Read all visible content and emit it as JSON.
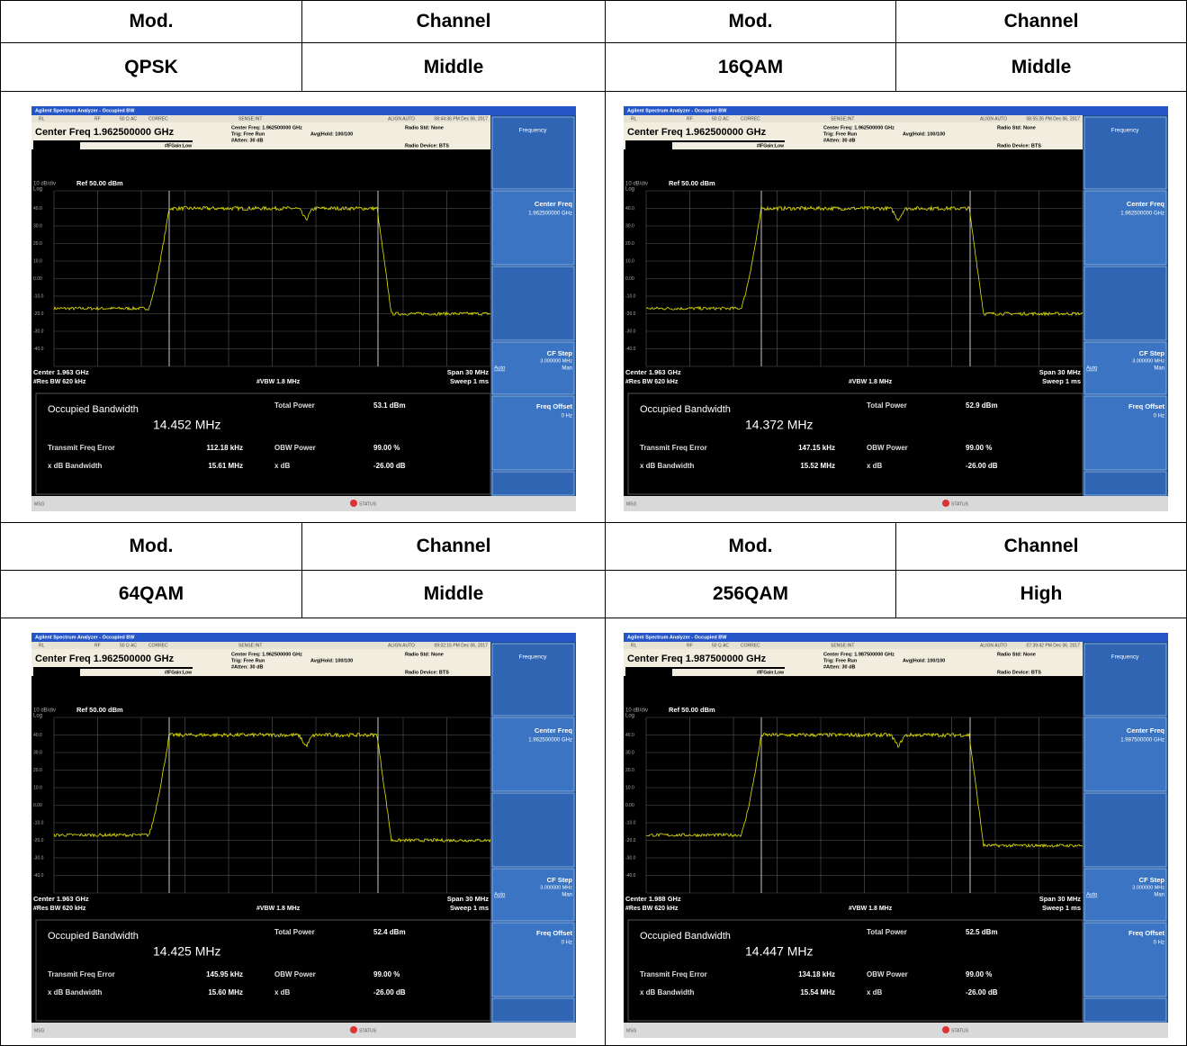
{
  "header_rows": [
    [
      "Mod.",
      "Channel",
      "Mod.",
      "Channel"
    ],
    [
      "QPSK",
      "Middle",
      "16QAM",
      "Middle"
    ],
    [
      "Mod.",
      "Channel",
      "Mod.",
      "Channel"
    ],
    [
      "64QAM",
      "Middle",
      "256QAM",
      "High"
    ]
  ],
  "labels": {
    "title_bar": "Agilent Spectrum Analyzer - Occupied BW",
    "status": [
      "RL",
      "RF",
      "50 Ω  AC",
      "CORREC",
      "SENSE:INT",
      "ALIGN AUTO"
    ],
    "if_gain": "#IFGain:Low",
    "trig": "Trig: Free Run",
    "atten": "#Atten: 30 dB",
    "avg_hold": "Avg|Hold: 100/100",
    "radio_std": "Radio Std: None",
    "radio_device": "Radio Device: BTS",
    "scale": "10 dB/div",
    "ref": "Ref 50.00 dBm",
    "log": "Log",
    "y_labels": [
      "40.0",
      "30.0",
      "20.0",
      "10.0",
      "0.00",
      "-10.0",
      "-20.0",
      "-30.0",
      "-40.0"
    ],
    "res_bw": "#Res BW  620 kHz",
    "vbw": "#VBW  1.8 MHz",
    "span": "Span 30 MHz",
    "sweep": "Sweep  1 ms",
    "softkey_menu": "Frequency",
    "softkey_center": "Center Freq",
    "softkey_cf_step": "CF Step",
    "cf_step_value": "3.000000 MHz",
    "auto": "Auto",
    "man": "Man",
    "softkey_offset": "Freq Offset",
    "offset_value": "0 Hz",
    "occupied_bw": "Occupied Bandwidth",
    "total_power": "Total Power",
    "freq_error": "Transmit Freq Error",
    "obw_power": "OBW Power",
    "obw_power_value": "99.00 %",
    "xdb_bw": "x dB Bandwidth",
    "xdb": "x dB",
    "xdb_value": "-26.00 dB",
    "msg": "MSG",
    "status_bar": "STATUS"
  },
  "screens": [
    {
      "time": "08:44:36 PM Dec 06, 2017",
      "center_freq_title": "Center Freq 1.962500000 GHz",
      "center_freq_info": "Center Freq: 1.962500000 GHz",
      "center_freq_key": "1.962500000 GHz",
      "center": "Center 1.963 GHz",
      "obw": "14.452 MHz",
      "total_power": "53.1 dBm",
      "freq_error": "112.18 kHz",
      "xdb_bw": "15.61 MHz"
    },
    {
      "time": "08:55:26 PM Dec 06, 2017",
      "center_freq_title": "Center Freq 1.962500000 GHz",
      "center_freq_info": "Center Freq: 1.962500000 GHz",
      "center_freq_key": "1.962500000 GHz",
      "center": "Center 1.963 GHz",
      "obw": "14.372 MHz",
      "total_power": "52.9 dBm",
      "freq_error": "147.15 kHz",
      "xdb_bw": "15.52 MHz"
    },
    {
      "time": "09:02:15 PM Dec 06, 2017",
      "center_freq_title": "Center Freq 1.962500000 GHz",
      "center_freq_info": "Center Freq: 1.962500000 GHz",
      "center_freq_key": "1.962500000 GHz",
      "center": "Center 1.963 GHz",
      "obw": "14.425 MHz",
      "total_power": "52.4 dBm",
      "freq_error": "145.95 kHz",
      "xdb_bw": "15.60 MHz"
    },
    {
      "time": "07:39:42 PM Dec 06, 2017",
      "center_freq_title": "Center Freq 1.987500000 GHz",
      "center_freq_info": "Center Freq: 1.987500000 GHz",
      "center_freq_key": "1.987500000 GHz",
      "center": "Center 1.988 GHz",
      "obw": "14.447 MHz",
      "total_power": "52.5 dBm",
      "freq_error": "134.18 kHz",
      "xdb_bw": "15.54 MHz"
    }
  ]
}
